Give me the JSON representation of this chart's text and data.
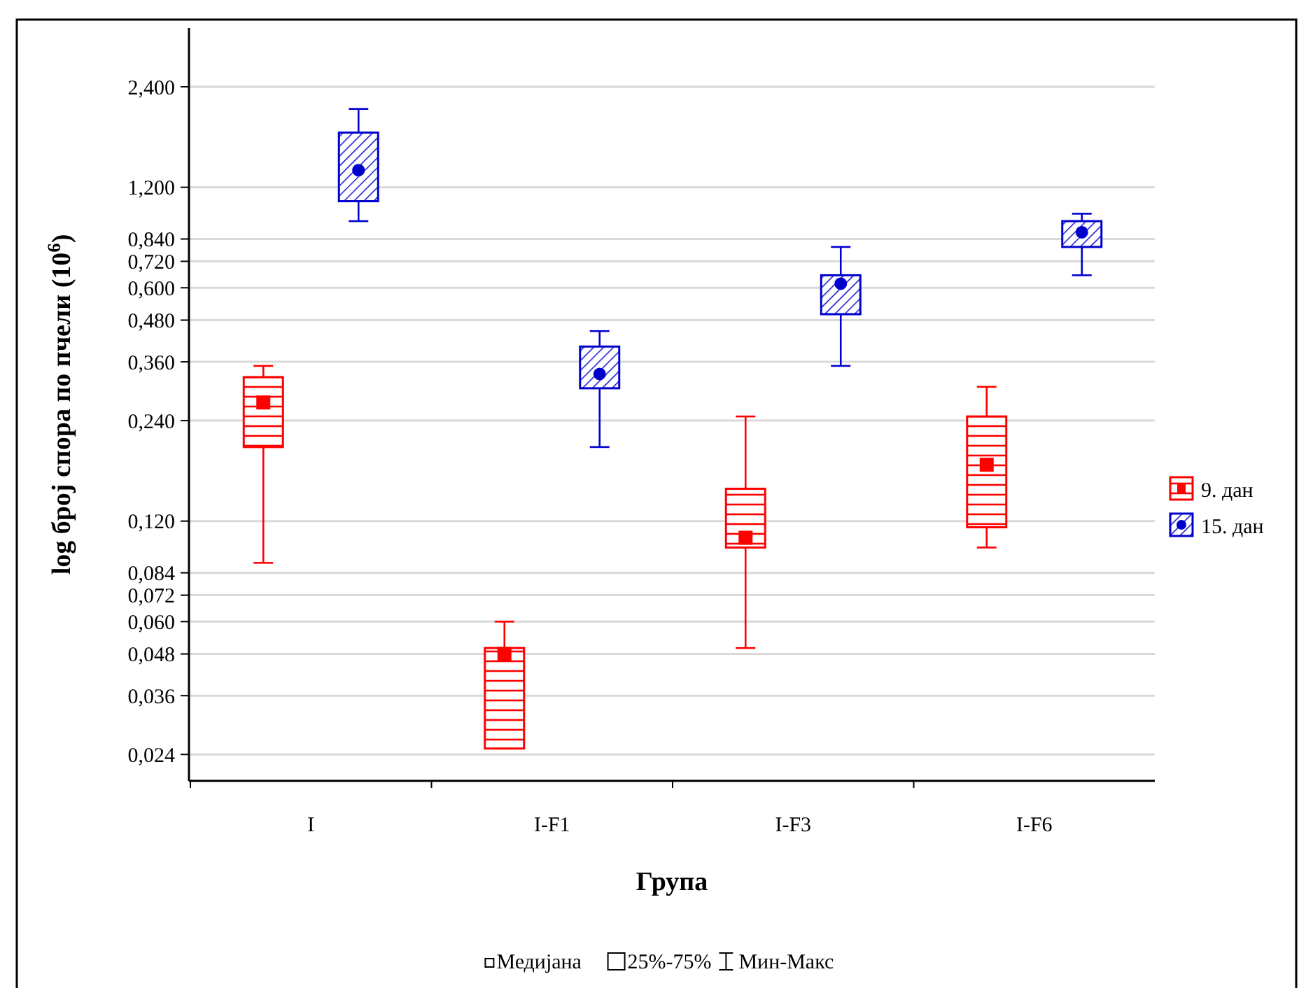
{
  "chart_data": {
    "type": "box",
    "xlabel": "Група",
    "ylabel": "log број спора по пчели (10$^{6}$)",
    "categories": [
      "I",
      "I-F1",
      "I-F3",
      "I-F6"
    ],
    "series": [
      {
        "name": "9. дан",
        "color": "#ff0000",
        "marker": "square",
        "boxes": [
          {
            "low": 0.09,
            "q1": 0.2,
            "median": 0.272,
            "q3": 0.324,
            "high": 0.35
          },
          {
            "low": 0.025,
            "q1": 0.025,
            "median": 0.048,
            "q3": 0.05,
            "high": 0.06
          },
          {
            "low": 0.05,
            "q1": 0.1,
            "median": 0.107,
            "q3": 0.15,
            "high": 0.247
          },
          {
            "low": 0.1,
            "q1": 0.115,
            "median": 0.177,
            "q3": 0.247,
            "high": 0.303
          }
        ]
      },
      {
        "name": "15. дан",
        "color": "#0000cc",
        "marker": "circle",
        "boxes": [
          {
            "low": 0.95,
            "q1": 1.09,
            "median": 1.35,
            "q3": 1.75,
            "high": 2.06
          },
          {
            "low": 0.2,
            "q1": 0.3,
            "median": 0.331,
            "q3": 0.4,
            "high": 0.445
          },
          {
            "low": 0.35,
            "q1": 0.5,
            "median": 0.617,
            "q3": 0.654,
            "high": 0.795
          },
          {
            "low": 0.654,
            "q1": 0.795,
            "median": 0.88,
            "q3": 0.95,
            "high": 1.0
          }
        ]
      }
    ],
    "log": "y",
    "ylim": [
      0.02,
      3.6
    ],
    "yticks": [
      {
        "value": 0.024,
        "label": "0,024"
      },
      {
        "value": 0.036,
        "label": "0,036"
      },
      {
        "value": 0.048,
        "label": "0,048"
      },
      {
        "value": 0.06,
        "label": "0,060"
      },
      {
        "value": 0.072,
        "label": "0,072"
      },
      {
        "value": 0.084,
        "label": "0,084"
      },
      {
        "value": 0.12,
        "label": "0,120"
      },
      {
        "value": 0.24,
        "label": "0,240"
      },
      {
        "value": 0.36,
        "label": "0,360"
      },
      {
        "value": 0.48,
        "label": "0,480"
      },
      {
        "value": 0.6,
        "label": "0,600"
      },
      {
        "value": 0.72,
        "label": "0,720"
      },
      {
        "value": 0.84,
        "label": "0,840"
      },
      {
        "value": 1.2,
        "label": "1,200"
      },
      {
        "value": 2.4,
        "label": "2,400"
      }
    ],
    "grid": "y",
    "legend": "right",
    "annotations": [
      "Медијана",
      "25%-75%",
      "Мин-Макс"
    ]
  }
}
